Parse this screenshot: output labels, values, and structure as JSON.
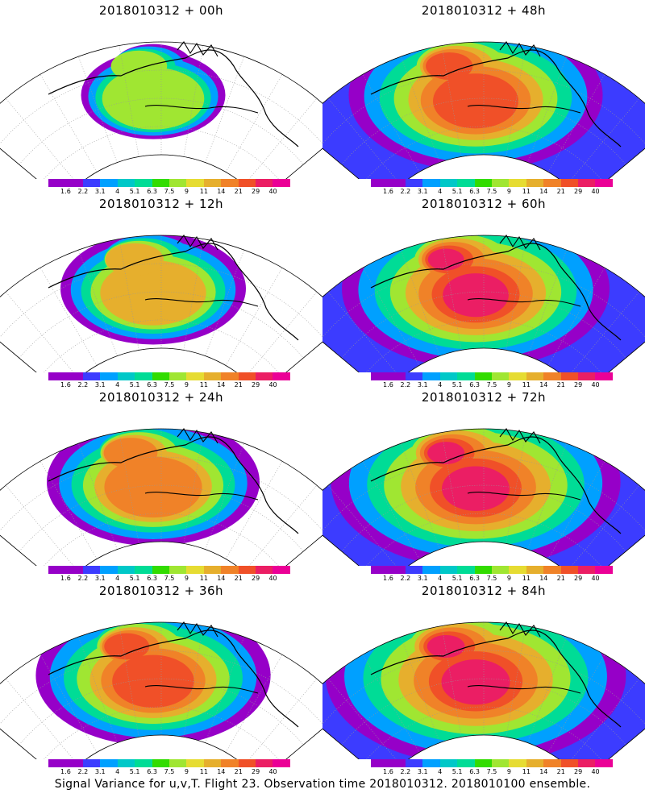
{
  "colorbar": {
    "labels": [
      "1.6",
      "2.2",
      "3.1",
      "4",
      "5.1",
      "6.3",
      "7.5",
      "9",
      "11",
      "14",
      "21",
      "29",
      "40"
    ],
    "colors": [
      "#9600c8",
      "#9600c8",
      "#3c3cff",
      "#00a0ff",
      "#00c8c8",
      "#00dc96",
      "#32dc00",
      "#a0e632",
      "#e6dc32",
      "#e6af2d",
      "#f08228",
      "#f05028",
      "#eb1e64",
      "#eb0096"
    ]
  },
  "panels": [
    {
      "title": "2018010312 + 00h",
      "intensity": 0.35
    },
    {
      "title": "2018010312 + 48h",
      "intensity": 0.75
    },
    {
      "title": "2018010312 + 12h",
      "intensity": 0.5
    },
    {
      "title": "2018010312 + 60h",
      "intensity": 0.8
    },
    {
      "title": "2018010312 + 24h",
      "intensity": 0.6
    },
    {
      "title": "2018010312 + 72h",
      "intensity": 0.88
    },
    {
      "title": "2018010312 + 36h",
      "intensity": 0.68
    },
    {
      "title": "2018010312 + 84h",
      "intensity": 0.92
    }
  ],
  "footer": "Signal Variance for u,v,T. Flight 23. Observation time 2018010312. 2018010100 ensemble."
}
